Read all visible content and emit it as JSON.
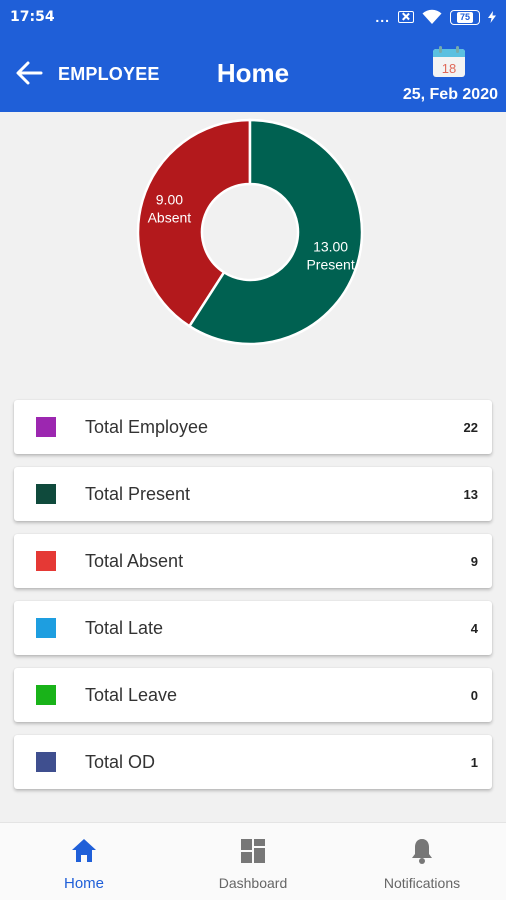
{
  "status_bar": {
    "time": "17:54",
    "dots": "...",
    "battery": "75"
  },
  "header": {
    "back_label": "EMPLOYEE",
    "title": "Home",
    "date": "25, Feb 2020",
    "calendar_day": "18"
  },
  "chart_data": {
    "type": "pie",
    "donut": true,
    "slices": [
      {
        "label": "Absent",
        "value_text": "9.00",
        "value": 9,
        "color": "#b3191c"
      },
      {
        "label": "Present",
        "value_text": "13.00",
        "value": 13,
        "color": "#006151"
      }
    ]
  },
  "stats": [
    {
      "label": "Total Employee",
      "value": "22",
      "color": "#9c27b0"
    },
    {
      "label": "Total Present",
      "value": "13",
      "color": "#0f4a3c"
    },
    {
      "label": "Total Absent",
      "value": "9",
      "color": "#e53935"
    },
    {
      "label": "Total Late",
      "value": "4",
      "color": "#1e9ee0"
    },
    {
      "label": "Total Leave",
      "value": "0",
      "color": "#19b319"
    },
    {
      "label": "Total OD",
      "value": "1",
      "color": "#3f4f8f"
    }
  ],
  "nav": [
    {
      "label": "Home",
      "icon": "home-icon",
      "active": true
    },
    {
      "label": "Dashboard",
      "icon": "dashboard-icon",
      "active": false
    },
    {
      "label": "Notifications",
      "icon": "bell-icon",
      "active": false
    }
  ],
  "colors": {
    "primary": "#1f5fd8",
    "background": "#f1f1f1"
  }
}
